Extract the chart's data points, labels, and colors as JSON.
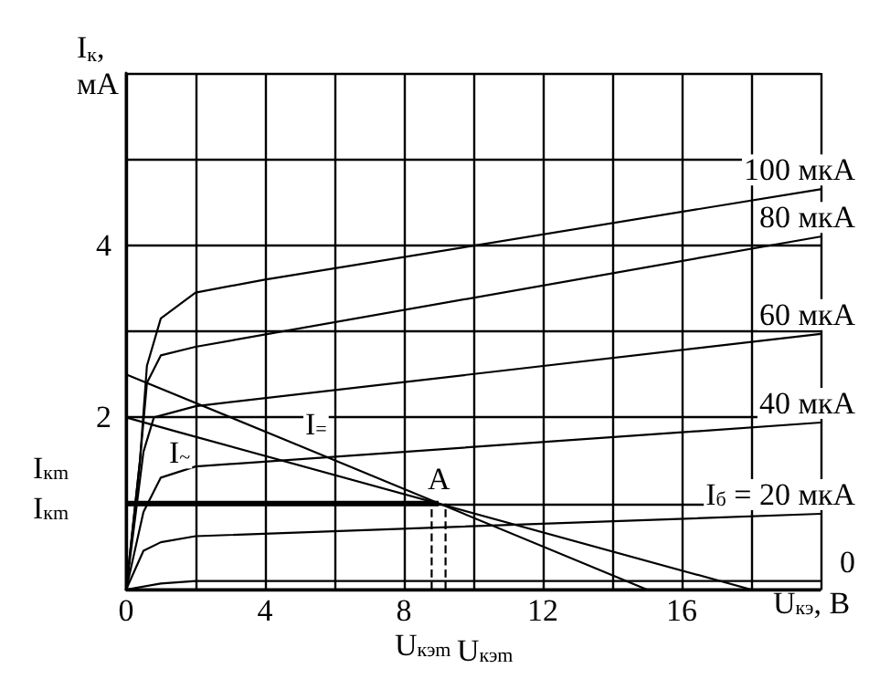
{
  "chart_data": {
    "type": "line",
    "xlabel": "U$_{кэ}$, В",
    "ylabel": "I$_{к}$,\nмА",
    "xlim": [
      0,
      20
    ],
    "ylim": [
      0,
      6
    ],
    "xticks": [
      0,
      {
        "value": 2,
        "label": null
      },
      4,
      {
        "value": 6,
        "label": null
      },
      8,
      {
        "value": 10,
        "label": null
      },
      12,
      {
        "value": 14,
        "label": null
      },
      16,
      {
        "value": 18,
        "label": null
      },
      {
        "value": 20,
        "label": null
      }
    ],
    "yticks": [
      {
        "value": 0,
        "label": null
      },
      {
        "value": 1,
        "label": null
      },
      2,
      {
        "value": 3,
        "label": null
      },
      4,
      {
        "value": 5,
        "label": null
      },
      {
        "value": 6,
        "label": null
      }
    ],
    "grid": true,
    "marker": "none",
    "line_style": "solid",
    "series": [
      {
        "name": "0",
        "color": "#000000",
        "x": [
          0,
          1,
          2,
          20
        ],
        "values": [
          0,
          0.07,
          0.1,
          0.1
        ]
      },
      {
        "name": "I$_{б}$ = 20 мкА",
        "color": "#000000",
        "x": [
          0,
          0.5,
          1,
          2,
          20
        ],
        "values": [
          0,
          0.45,
          0.55,
          0.62,
          0.88
        ]
      },
      {
        "name": "40 мкА",
        "color": "#000000",
        "x": [
          0,
          0.5,
          1,
          2,
          20
        ],
        "values": [
          0,
          0.9,
          1.3,
          1.43,
          1.94
        ]
      },
      {
        "name": "60 мкА",
        "color": "#000000",
        "x": [
          0,
          0.5,
          0.8,
          2,
          20
        ],
        "values": [
          0,
          1.6,
          2.0,
          2.13,
          2.97
        ]
      },
      {
        "name": "80 мкА",
        "color": "#000000",
        "x": [
          0,
          0.4,
          0.6,
          1,
          2,
          20
        ],
        "values": [
          0,
          1.5,
          2.4,
          2.72,
          2.82,
          4.1
        ]
      },
      {
        "name": "100 мкА",
        "color": "#000000",
        "x": [
          0,
          0.4,
          0.6,
          1,
          2,
          4,
          20
        ],
        "values": [
          0,
          1.5,
          2.6,
          3.15,
          3.45,
          3.6,
          4.65
        ]
      },
      {
        "name": "I$_{=}$",
        "color": "#000000",
        "x": [
          0,
          5,
          15
        ],
        "values": [
          2.5,
          1.67,
          0
        ]
      },
      {
        "name": "I$_{~}$",
        "color": "#000000",
        "x": [
          0,
          1.5,
          18
        ],
        "values": [
          2,
          1.83,
          0
        ]
      },
      {
        "color": "#000000",
        "x": [
          0,
          9
        ],
        "values": [
          1,
          1
        ]
      },
      {
        "color": "#000000",
        "line_style": "dashed",
        "x": [
          8.8,
          8.8
        ],
        "values": [
          0,
          1
        ]
      },
      {
        "color": "#000000",
        "line_style": "dashed",
        "x": [
          9.2,
          9.2
        ],
        "values": [
          0,
          1
        ]
      }
    ],
    "annotations": [
      {
        "text": "A",
        "x": 9,
        "y": 1
      },
      "I$_{кm}$",
      "I$_{кm}$",
      "U$_{кэm}$",
      "U$_{кэm}$"
    ]
  }
}
